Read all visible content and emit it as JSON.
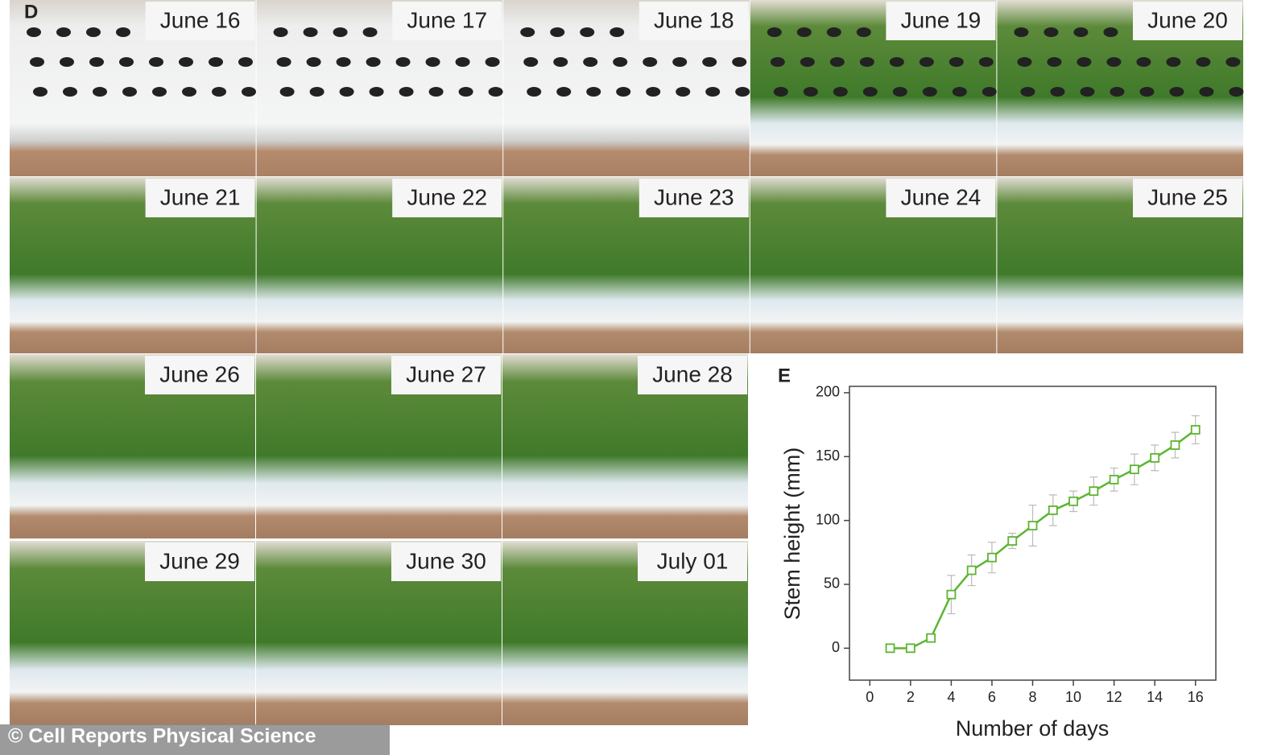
{
  "panel_d": {
    "label": "D",
    "photos": [
      "June 16",
      "June 17",
      "June 18",
      "June 19",
      "June 20",
      "June 21",
      "June 22",
      "June 23",
      "June 24",
      "June 25",
      "June 26",
      "June 27",
      "June 28",
      "June 29",
      "June 30",
      "July 01"
    ]
  },
  "credit": "© Cell Reports Physical Science",
  "chart_data": {
    "type": "line",
    "panel_label": "E",
    "x_label": "Number of days",
    "y_label": "Stem height (mm)",
    "x": [
      1,
      2,
      3,
      4,
      5,
      6,
      7,
      8,
      9,
      10,
      11,
      12,
      13,
      14,
      15,
      16
    ],
    "series": [
      {
        "color": "#5cb531",
        "values": [
          0,
          0,
          8,
          42,
          61,
          71,
          84,
          96,
          108,
          115,
          123,
          132,
          140,
          149,
          159,
          171
        ],
        "errors": [
          2,
          2,
          3,
          15,
          12,
          12,
          6,
          16,
          12,
          8,
          11,
          9,
          12,
          10,
          10,
          11
        ]
      }
    ],
    "xlim": [
      -1,
      17
    ],
    "xticks": [
      0,
      2,
      4,
      6,
      8,
      10,
      12,
      14,
      16
    ],
    "ylim": [
      -25,
      205
    ],
    "yticks": [
      0,
      50,
      100,
      150,
      200
    ]
  }
}
